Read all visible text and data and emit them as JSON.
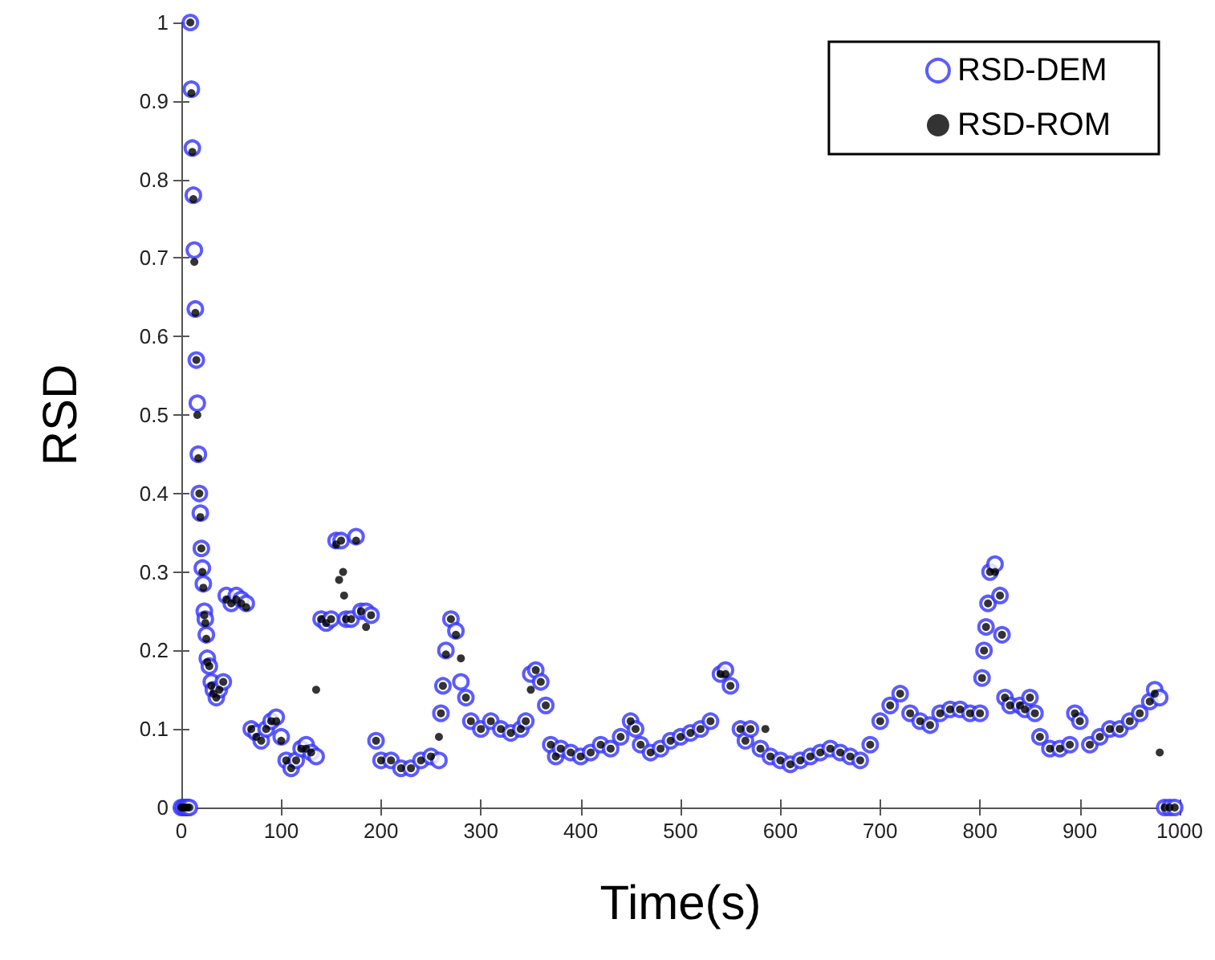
{
  "chart_data": {
    "type": "scatter",
    "xlabel": "Time(s)",
    "ylabel": "RSD",
    "xlim": [
      0,
      1000
    ],
    "ylim": [
      0,
      1
    ],
    "xticks": [
      0,
      100,
      200,
      300,
      400,
      500,
      600,
      700,
      800,
      900,
      1000
    ],
    "yticks": [
      0,
      0.1,
      0.2,
      0.3,
      0.4,
      0.5,
      0.6,
      0.7,
      0.8,
      0.9,
      1
    ],
    "grid": false,
    "legend": "top right",
    "marker": "circle",
    "series": [
      {
        "name": "RSD-DEM",
        "color": "#3333ff",
        "x": [
          0,
          2,
          4,
          6,
          8,
          9,
          10,
          11,
          12,
          13,
          14,
          15,
          16,
          17,
          18,
          19,
          20,
          21,
          22,
          23,
          24,
          25,
          26,
          28,
          30,
          32,
          35,
          38,
          42,
          45,
          50,
          55,
          60,
          65,
          70,
          75,
          80,
          85,
          90,
          95,
          100,
          105,
          110,
          115,
          120,
          125,
          130,
          135,
          140,
          145,
          150,
          155,
          160,
          165,
          170,
          175,
          180,
          185,
          190,
          195,
          200,
          210,
          220,
          230,
          240,
          250,
          258,
          260,
          262,
          265,
          270,
          275,
          280,
          285,
          290,
          300,
          310,
          320,
          330,
          340,
          345,
          350,
          355,
          360,
          365,
          370,
          375,
          380,
          390,
          400,
          410,
          420,
          430,
          440,
          450,
          455,
          460,
          470,
          480,
          490,
          500,
          510,
          520,
          530,
          540,
          545,
          550,
          560,
          565,
          570,
          580,
          590,
          600,
          610,
          620,
          630,
          640,
          650,
          660,
          670,
          680,
          690,
          700,
          710,
          720,
          730,
          740,
          750,
          760,
          770,
          780,
          790,
          800,
          802,
          804,
          806,
          808,
          810,
          815,
          820,
          822,
          825,
          830,
          840,
          845,
          850,
          855,
          860,
          870,
          880,
          890,
          895,
          900,
          910,
          920,
          930,
          940,
          950,
          960,
          970,
          975,
          980,
          985,
          990,
          995
        ],
        "values": [
          0,
          0,
          0,
          0,
          0,
          1,
          0.915,
          0.84,
          0.78,
          0.71,
          0.635,
          0.57,
          0.515,
          0.45,
          0.4,
          0.375,
          0.33,
          0.305,
          0.285,
          0.25,
          0.24,
          0.22,
          0.19,
          0.18,
          0.16,
          0.15,
          0.14,
          0.15,
          0.16,
          0.27,
          0.26,
          0.27,
          0.265,
          0.26,
          0.1,
          0.095,
          0.085,
          0.1,
          0.11,
          0.115,
          0.09,
          0.06,
          0.05,
          0.06,
          0.075,
          0.08,
          0.07,
          0.065,
          0.24,
          0.235,
          0.24,
          0.34,
          0.34,
          0.24,
          0.24,
          0.345,
          0.25,
          0.25,
          0.245,
          0.085,
          0.06,
          0.06,
          0.05,
          0.05,
          0.06,
          0.065,
          0.06,
          0.12,
          0.155,
          0.2,
          0.24,
          0.225,
          0.16,
          0.14,
          0.11,
          0.1,
          0.11,
          0.1,
          0.095,
          0.1,
          0.11,
          0.17,
          0.175,
          0.16,
          0.13,
          0.08,
          0.065,
          0.075,
          0.07,
          0.065,
          0.07,
          0.08,
          0.075,
          0.09,
          0.11,
          0.1,
          0.08,
          0.07,
          0.075,
          0.085,
          0.09,
          0.095,
          0.1,
          0.11,
          0.17,
          0.175,
          0.155,
          0.1,
          0.085,
          0.1,
          0.075,
          0.065,
          0.06,
          0.055,
          0.06,
          0.065,
          0.07,
          0.075,
          0.07,
          0.065,
          0.06,
          0.08,
          0.11,
          0.13,
          0.145,
          0.12,
          0.11,
          0.105,
          0.12,
          0.125,
          0.125,
          0.12,
          0.12,
          0.165,
          0.2,
          0.23,
          0.26,
          0.3,
          0.31,
          0.27,
          0.22,
          0.14,
          0.13,
          0.13,
          0.125,
          0.14,
          0.12,
          0.09,
          0.075,
          0.075,
          0.08,
          0.12,
          0.11,
          0.08,
          0.09,
          0.1,
          0.1,
          0.11,
          0.12,
          0.135,
          0.15,
          0.14,
          0,
          0,
          0
        ]
      },
      {
        "name": "RSD-ROM",
        "color": "#000000",
        "x": [
          0,
          2,
          4,
          6,
          8,
          9,
          10,
          11,
          12,
          13,
          14,
          15,
          16,
          17,
          18,
          19,
          20,
          21,
          22,
          23,
          24,
          25,
          26,
          28,
          30,
          32,
          35,
          38,
          42,
          45,
          50,
          55,
          60,
          65,
          70,
          75,
          80,
          85,
          90,
          95,
          100,
          105,
          110,
          115,
          120,
          125,
          130,
          135,
          140,
          145,
          150,
          155,
          158,
          160,
          162,
          163,
          165,
          170,
          175,
          180,
          185,
          190,
          195,
          200,
          210,
          220,
          230,
          240,
          250,
          258,
          260,
          262,
          265,
          270,
          275,
          280,
          285,
          290,
          300,
          310,
          320,
          330,
          340,
          345,
          350,
          355,
          360,
          365,
          370,
          375,
          380,
          390,
          400,
          410,
          420,
          430,
          440,
          450,
          455,
          460,
          470,
          480,
          490,
          500,
          510,
          520,
          530,
          540,
          545,
          550,
          560,
          565,
          570,
          580,
          585,
          590,
          600,
          610,
          620,
          630,
          640,
          650,
          660,
          670,
          680,
          690,
          700,
          710,
          720,
          730,
          740,
          750,
          760,
          770,
          780,
          790,
          800,
          802,
          804,
          806,
          808,
          810,
          815,
          820,
          822,
          825,
          830,
          840,
          845,
          850,
          855,
          860,
          870,
          880,
          890,
          895,
          900,
          910,
          920,
          930,
          940,
          950,
          960,
          970,
          975,
          980,
          985,
          990,
          995
        ],
        "values": [
          0,
          0,
          0,
          0,
          0,
          1,
          0.91,
          0.835,
          0.775,
          0.695,
          0.63,
          0.57,
          0.5,
          0.445,
          0.4,
          0.37,
          0.33,
          0.3,
          0.28,
          0.245,
          0.235,
          0.215,
          0.185,
          0.18,
          0.155,
          0.145,
          0.14,
          0.15,
          0.16,
          0.265,
          0.26,
          0.265,
          0.26,
          0.255,
          0.1,
          0.09,
          0.085,
          0.1,
          0.11,
          0.11,
          0.085,
          0.06,
          0.05,
          0.06,
          0.075,
          0.075,
          0.07,
          0.15,
          0.24,
          0.235,
          0.24,
          0.335,
          0.29,
          0.34,
          0.3,
          0.27,
          0.24,
          0.24,
          0.34,
          0.25,
          0.23,
          0.245,
          0.085,
          0.06,
          0.06,
          0.05,
          0.05,
          0.06,
          0.065,
          0.09,
          0.12,
          0.155,
          0.195,
          0.24,
          0.22,
          0.19,
          0.14,
          0.11,
          0.1,
          0.11,
          0.1,
          0.095,
          0.1,
          0.11,
          0.15,
          0.175,
          0.16,
          0.13,
          0.08,
          0.065,
          0.075,
          0.07,
          0.065,
          0.07,
          0.08,
          0.075,
          0.09,
          0.11,
          0.1,
          0.08,
          0.07,
          0.075,
          0.085,
          0.09,
          0.095,
          0.1,
          0.11,
          0.17,
          0.17,
          0.155,
          0.1,
          0.085,
          0.1,
          0.075,
          0.1,
          0.065,
          0.06,
          0.055,
          0.06,
          0.065,
          0.07,
          0.075,
          0.07,
          0.065,
          0.06,
          0.08,
          0.11,
          0.13,
          0.145,
          0.12,
          0.11,
          0.105,
          0.12,
          0.125,
          0.125,
          0.12,
          0.12,
          0.165,
          0.2,
          0.23,
          0.26,
          0.3,
          0.3,
          0.27,
          0.22,
          0.14,
          0.13,
          0.13,
          0.125,
          0.14,
          0.12,
          0.09,
          0.075,
          0.075,
          0.08,
          0.12,
          0.11,
          0.08,
          0.09,
          0.1,
          0.1,
          0.11,
          0.12,
          0.135,
          0.145,
          0.07,
          0,
          0,
          0
        ]
      }
    ]
  }
}
